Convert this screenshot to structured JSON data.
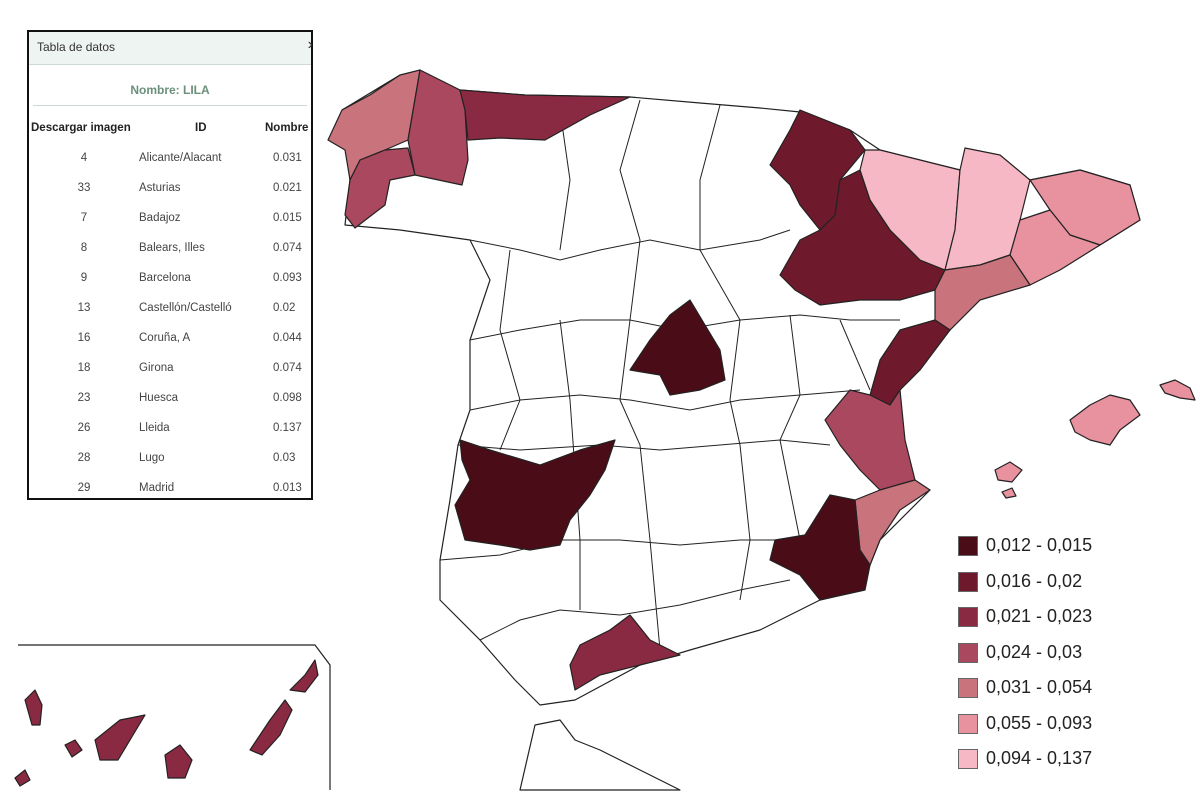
{
  "panel": {
    "title": "Tabla de datos",
    "name_line": "Nombre: LILA",
    "columns": [
      "Descargar imagen",
      "ID",
      "Nombre"
    ],
    "rows": [
      {
        "id": "4",
        "name": "Alicante/Alacant",
        "value": "0.031"
      },
      {
        "id": "33",
        "name": "Asturias",
        "value": "0.021"
      },
      {
        "id": "7",
        "name": "Badajoz",
        "value": "0.015"
      },
      {
        "id": "8",
        "name": "Balears, Illes",
        "value": "0.074"
      },
      {
        "id": "9",
        "name": "Barcelona",
        "value": "0.093"
      },
      {
        "id": "13",
        "name": "Castellón/Castelló",
        "value": "0.02"
      },
      {
        "id": "16",
        "name": "Coruña, A",
        "value": "0.044"
      },
      {
        "id": "18",
        "name": "Girona",
        "value": "0.074"
      },
      {
        "id": "23",
        "name": "Huesca",
        "value": "0.098"
      },
      {
        "id": "26",
        "name": "Lleida",
        "value": "0.137"
      },
      {
        "id": "28",
        "name": "Lugo",
        "value": "0.03"
      },
      {
        "id": "29",
        "name": "Madrid",
        "value": "0.013"
      }
    ]
  },
  "legend": [
    {
      "label": "0,012 - 0,015",
      "color": "#4a0c17"
    },
    {
      "label": "0,016 - 0,02",
      "color": "#6e1a2c"
    },
    {
      "label": "0,021 - 0,023",
      "color": "#8a2a42"
    },
    {
      "label": "0,024 - 0,03",
      "color": "#a9485e"
    },
    {
      "label": "0,031 - 0,054",
      "color": "#c9747d"
    },
    {
      "label": "0,055 - 0,093",
      "color": "#e892a0"
    },
    {
      "label": "0,094 - 0,137",
      "color": "#f5b8c4"
    }
  ]
}
